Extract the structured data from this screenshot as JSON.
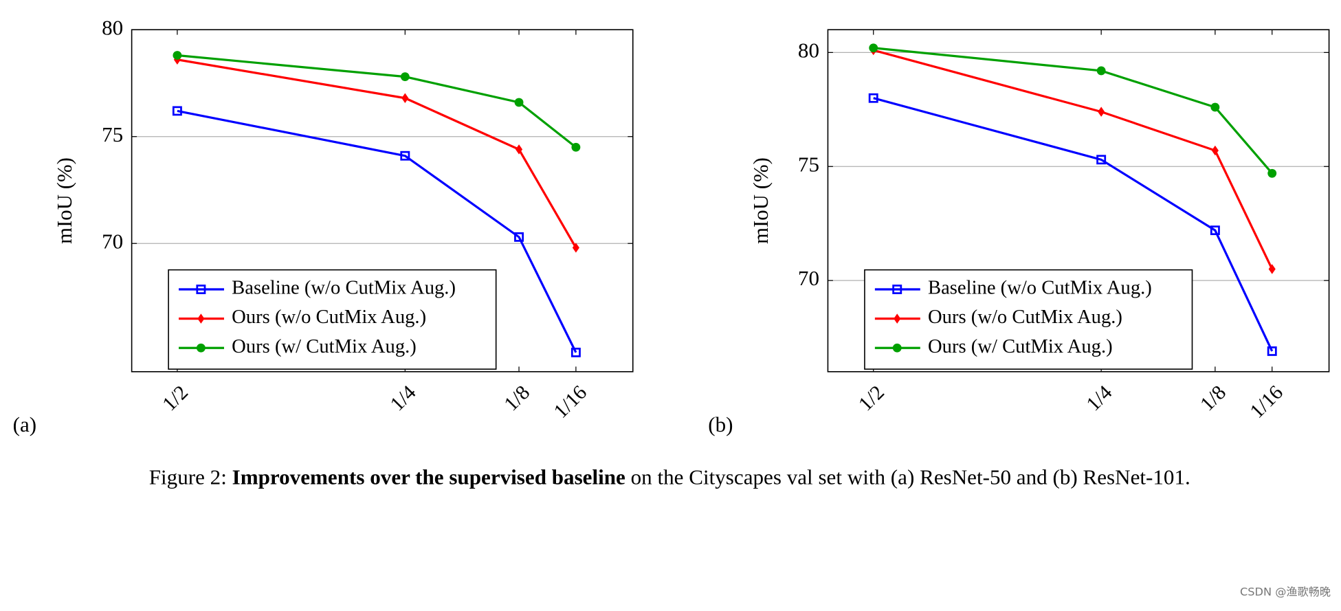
{
  "chart_data": [
    {
      "type": "line",
      "panel": "(a)",
      "ylabel": "mIoU (%)",
      "x": [
        0.5,
        0.25,
        0.125,
        0.0625
      ],
      "xlim": [
        0.55,
        0
      ],
      "xticks": [
        {
          "value": 0.5,
          "label": "1/2"
        },
        {
          "value": 0.25,
          "label": "1/4"
        },
        {
          "value": 0.125,
          "label": "1/8"
        },
        {
          "value": 0.0625,
          "label": "1/16"
        }
      ],
      "ylim": [
        64,
        80
      ],
      "yticks": [
        70,
        75,
        80
      ],
      "grid": true,
      "legend": "lower left",
      "series": [
        {
          "name": "Baseline (w/o CutMix Aug.)",
          "color": "#0000ff",
          "marker": "square-open",
          "values": [
            76.2,
            74.1,
            70.3,
            64.9
          ]
        },
        {
          "name": "Ours (w/o CutMix Aug.)",
          "color": "#ff0000",
          "marker": "diamond",
          "values": [
            78.6,
            76.8,
            74.4,
            69.8
          ]
        },
        {
          "name": "Ours (w/ CutMix Aug.)",
          "color": "#00a000",
          "marker": "circle",
          "values": [
            78.8,
            77.8,
            76.6,
            74.5
          ]
        }
      ]
    },
    {
      "type": "line",
      "panel": "(b)",
      "ylabel": "mIoU (%)",
      "x": [
        0.5,
        0.25,
        0.125,
        0.0625
      ],
      "xlim": [
        0.55,
        0
      ],
      "xticks": [
        {
          "value": 0.5,
          "label": "1/2"
        },
        {
          "value": 0.25,
          "label": "1/4"
        },
        {
          "value": 0.125,
          "label": "1/8"
        },
        {
          "value": 0.0625,
          "label": "1/16"
        }
      ],
      "ylim": [
        66,
        81
      ],
      "yticks": [
        70,
        75,
        80
      ],
      "grid": true,
      "legend": "lower left",
      "series": [
        {
          "name": "Baseline (w/o CutMix Aug.)",
          "color": "#0000ff",
          "marker": "square-open",
          "values": [
            78.0,
            75.3,
            72.2,
            66.9
          ]
        },
        {
          "name": "Ours (w/o CutMix Aug.)",
          "color": "#ff0000",
          "marker": "diamond",
          "values": [
            80.1,
            77.4,
            75.7,
            70.5
          ]
        },
        {
          "name": "Ours (w/ CutMix Aug.)",
          "color": "#00a000",
          "marker": "circle",
          "values": [
            80.2,
            79.2,
            77.6,
            74.7
          ]
        }
      ]
    }
  ],
  "caption": {
    "label": "Figure 2:",
    "bold": "Improvements over the supervised baseline",
    "text": "on the Cityscapes val set with (a) ResNet-50 and (b) ResNet-101."
  },
  "watermark": "CSDN @渔歌畅晚"
}
